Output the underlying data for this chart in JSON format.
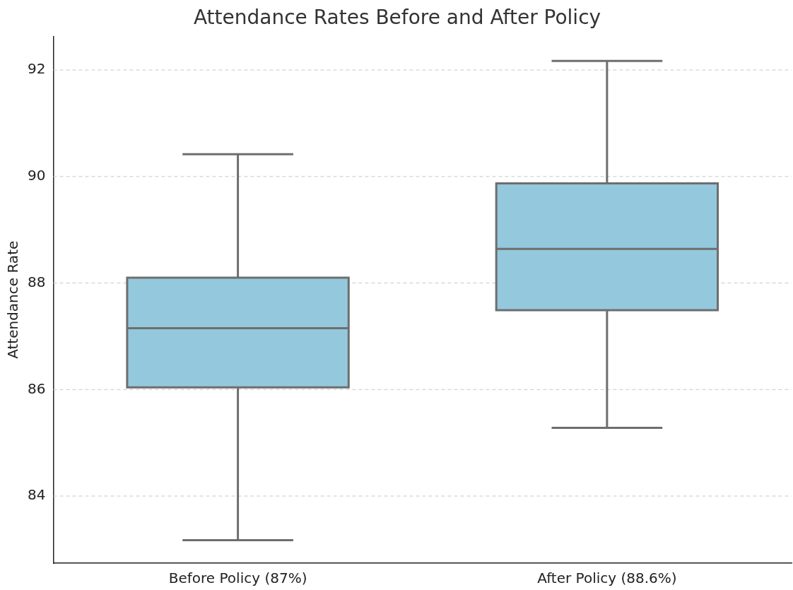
{
  "chart_data": {
    "type": "box",
    "title": "Attendance Rates Before and After Policy",
    "ylabel": "Attendance Rate",
    "categories": [
      "Before Policy (87%)",
      "After Policy (88.6%)"
    ],
    "boxes": [
      {
        "low": 83.17,
        "q1": 86.04,
        "median": 87.15,
        "q3": 88.1,
        "high": 90.42
      },
      {
        "low": 85.28,
        "q1": 87.49,
        "median": 88.64,
        "q3": 89.87,
        "high": 92.17
      }
    ],
    "color": "#94c8dd",
    "ylim": [
      82.74,
      92.63
    ],
    "yticks": [
      84,
      86,
      88,
      90,
      92
    ],
    "grid": "y"
  }
}
